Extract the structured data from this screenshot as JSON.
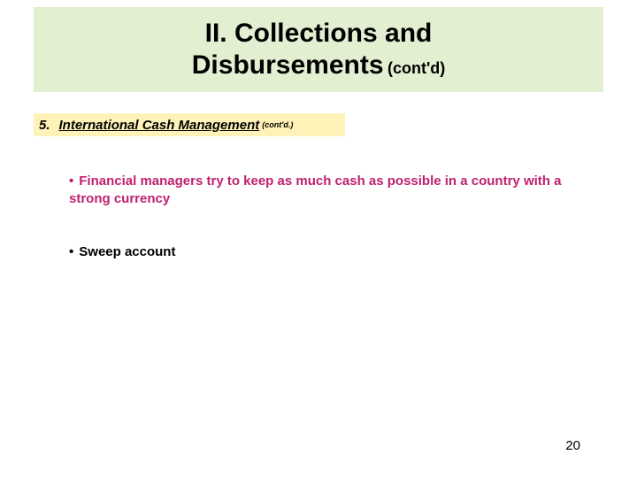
{
  "colors": {
    "title_band_bg": "#e2efd0",
    "title_text": "#000000",
    "subhead_band_bg": "#fff2b8",
    "subhead_text": "#000000",
    "bullet1_text": "#c02070",
    "bullet2_text": "#000000",
    "pagenum_text": "#000000",
    "slide_bg": "#ffffff"
  },
  "title": {
    "line1": "II. Collections and",
    "line2_main": "Disbursements",
    "line2_suffix": "(cont'd)"
  },
  "subhead": {
    "number": "5.",
    "text": "International Cash Management",
    "suffix": "(cont'd.)"
  },
  "bullets": [
    {
      "marker": "•",
      "text": "Financial managers try to keep as much cash as possible in a country with a strong currency"
    },
    {
      "marker": "•",
      "text": "Sweep account"
    }
  ],
  "page_number": "20"
}
